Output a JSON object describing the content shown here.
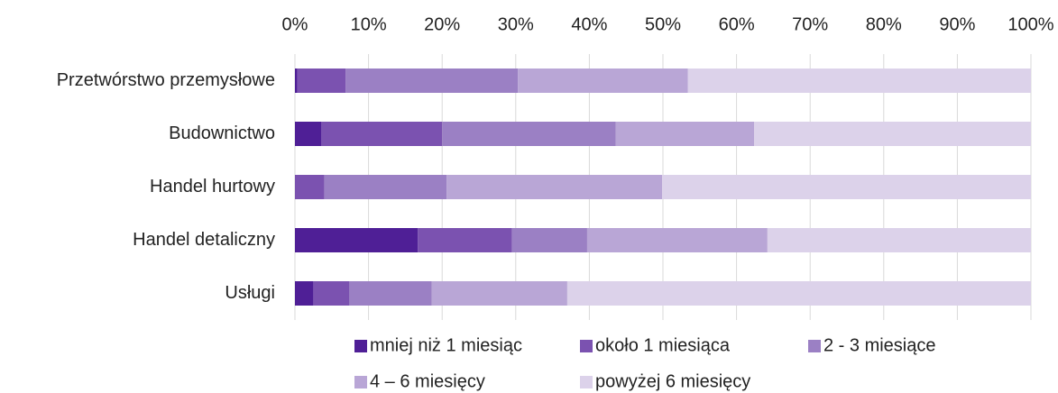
{
  "chart_data": {
    "type": "stacked_bar_horizontal",
    "categories": [
      "Przetwórstwo przemysłowe",
      "Budownictwo",
      "Handel hurtowy",
      "Handel detaliczny",
      "Usługi"
    ],
    "series": [
      {
        "name": "mniej niż 1 miesiąc",
        "color": "#4f1f96",
        "values": [
          0.3,
          3.6,
          0,
          16.7,
          2.5
        ]
      },
      {
        "name": "około 1 miesiąca",
        "color": "#7b52b0",
        "values": [
          6.6,
          16.4,
          4.0,
          12.8,
          4.9
        ]
      },
      {
        "name": "2 - 3 miesiące",
        "color": "#9b80c4",
        "values": [
          23.4,
          23.6,
          16.6,
          10.2,
          11.2
        ]
      },
      {
        "name": "4 – 6 miesięcy",
        "color": "#b9a6d6",
        "values": [
          23.1,
          18.8,
          29.3,
          24.5,
          18.4
        ]
      },
      {
        "name": "powyżej 6 miesięcy",
        "color": "#dcd2ea",
        "values": [
          46.6,
          37.6,
          50.1,
          35.8,
          63.0
        ]
      }
    ],
    "xlim": [
      0,
      100
    ],
    "xticks": [
      {
        "value": 0,
        "label": "0%"
      },
      {
        "value": 10,
        "label": "10%"
      },
      {
        "value": 20,
        "label": "20%"
      },
      {
        "value": 30,
        "label": "30%"
      },
      {
        "value": 40,
        "label": "40%"
      },
      {
        "value": 50,
        "label": "50%"
      },
      {
        "value": 60,
        "label": "60%"
      },
      {
        "value": 70,
        "label": "70%"
      },
      {
        "value": 80,
        "label": "80%"
      },
      {
        "value": 90,
        "label": "90%"
      },
      {
        "value": 100,
        "label": "100%"
      }
    ],
    "grid": true,
    "legend": "bottom"
  }
}
